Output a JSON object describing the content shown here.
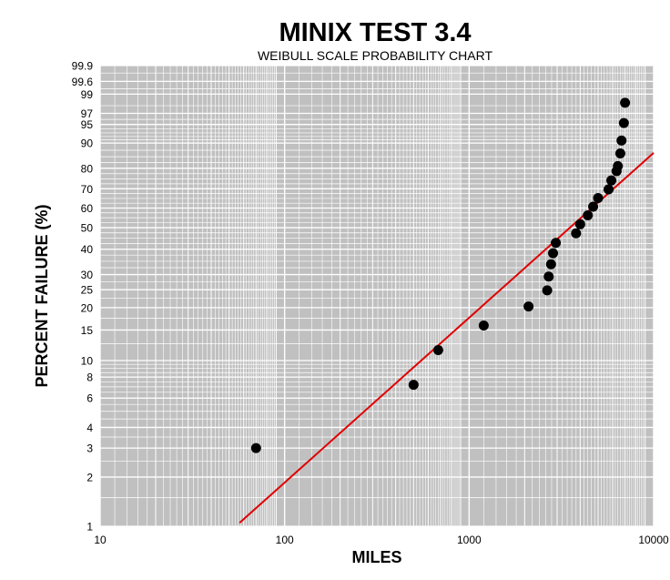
{
  "chart_data": {
    "type": "scatter",
    "title": "MINIX TEST 3.4",
    "subtitle": "WEIBULL SCALE PROBABILITY CHART",
    "xlabel": "MILES",
    "ylabel": "PERCENT FAILURE (%)",
    "x_scale": "log",
    "y_scale": "weibull",
    "xlim": [
      10,
      10000
    ],
    "ylim": [
      1,
      99.9
    ],
    "grid": true,
    "x_ticks": [
      "10",
      "100",
      "1000",
      "10000"
    ],
    "y_ticks": [
      "1",
      "2",
      "3",
      "4",
      "6",
      "8",
      "10",
      "15",
      "20",
      "25",
      "30",
      "40",
      "50",
      "60",
      "70",
      "80",
      "90",
      "95",
      "97",
      "99",
      "99.6",
      "99.9"
    ],
    "colors": {
      "plot_background": "#c0c0c0",
      "grid": "#ffffff",
      "points": "#000000",
      "fit_line": "#e00000"
    },
    "series": [
      {
        "type": "scatter",
        "x": [
          70,
          500,
          680,
          1200,
          2100,
          2650,
          2700,
          2780,
          2850,
          2950,
          3800,
          4000,
          4400,
          4700,
          5000,
          5700,
          5900,
          6300,
          6400,
          6600,
          6700,
          6900,
          7000
        ],
        "y": [
          3.0,
          7.2,
          11.5,
          15.9,
          20.3,
          24.8,
          29.3,
          33.8,
          38.3,
          42.8,
          47.3,
          51.7,
          56.2,
          60.7,
          65.2,
          69.7,
          74.2,
          78.7,
          81.0,
          86.3,
          90.8,
          95.3,
          98.3
        ]
      },
      {
        "type": "line",
        "x": [
          57,
          10000
        ],
        "y": [
          1.05,
          86.5
        ]
      }
    ]
  }
}
